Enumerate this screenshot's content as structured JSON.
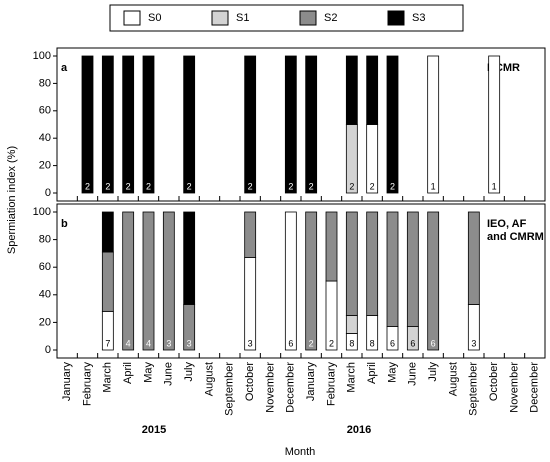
{
  "legend": [
    {
      "name": "S0",
      "color": "#ffffff"
    },
    {
      "name": "S1",
      "color": "#d3d3d3"
    },
    {
      "name": "S2",
      "color": "#8c8c8c"
    },
    {
      "name": "S3",
      "color": "#000000"
    }
  ],
  "y_label": "Spermiation index (%)",
  "x_label": "Month",
  "years": [
    "2015",
    "2016"
  ],
  "chart_data": [
    {
      "type": "stacked_bar",
      "panel": "a",
      "annotation": [
        "HCMR"
      ],
      "categories": [
        "January",
        "February",
        "March",
        "April",
        "May",
        "June",
        "July",
        "August",
        "September",
        "October",
        "November",
        "December",
        "January",
        "February",
        "March",
        "April",
        "May",
        "June",
        "July",
        "August",
        "September",
        "October",
        "November",
        "December"
      ],
      "series": [
        {
          "values": [
            null,
            0,
            0,
            0,
            0,
            null,
            0,
            null,
            null,
            0,
            null,
            0,
            0,
            null,
            0,
            50,
            0,
            null,
            100,
            null,
            null,
            100,
            null,
            null
          ]
        },
        {
          "values": [
            null,
            0,
            0,
            0,
            0,
            null,
            0,
            null,
            null,
            0,
            null,
            0,
            0,
            null,
            50,
            0,
            0,
            null,
            0,
            null,
            null,
            0,
            null,
            null
          ]
        },
        {
          "values": [
            null,
            0,
            0,
            0,
            0,
            null,
            0,
            null,
            null,
            0,
            null,
            0,
            0,
            null,
            0,
            0,
            0,
            null,
            0,
            null,
            null,
            0,
            null,
            null
          ]
        },
        {
          "values": [
            null,
            100,
            100,
            100,
            100,
            null,
            100,
            null,
            null,
            100,
            null,
            100,
            100,
            null,
            50,
            50,
            100,
            null,
            0,
            null,
            null,
            0,
            null,
            null
          ]
        }
      ],
      "n": [
        null,
        2,
        2,
        2,
        2,
        null,
        2,
        null,
        null,
        2,
        null,
        2,
        2,
        null,
        2,
        2,
        2,
        null,
        1,
        null,
        null,
        1,
        null,
        null
      ],
      "ylim": [
        0,
        100
      ],
      "yticks": [
        0,
        20,
        40,
        60,
        80,
        100
      ]
    },
    {
      "type": "stacked_bar",
      "panel": "b",
      "annotation": [
        "IEO, AF",
        "and CMRM"
      ],
      "categories": [
        "January",
        "February",
        "March",
        "April",
        "May",
        "June",
        "July",
        "August",
        "September",
        "October",
        "November",
        "December",
        "January",
        "February",
        "March",
        "April",
        "May",
        "June",
        "July",
        "August",
        "September",
        "October",
        "November",
        "December"
      ],
      "series": [
        {
          "values": [
            null,
            null,
            28,
            0,
            0,
            0,
            0,
            null,
            null,
            67,
            null,
            100,
            0,
            50,
            12,
            25,
            17,
            0,
            0,
            null,
            33,
            null,
            null,
            null
          ]
        },
        {
          "values": [
            null,
            null,
            0,
            0,
            0,
            0,
            0,
            null,
            null,
            0,
            null,
            0,
            0,
            0,
            13,
            0,
            0,
            17,
            0,
            null,
            0,
            null,
            null,
            null
          ]
        },
        {
          "values": [
            null,
            null,
            43,
            100,
            100,
            100,
            33,
            null,
            null,
            33,
            null,
            0,
            100,
            50,
            75,
            75,
            83,
            83,
            100,
            null,
            67,
            null,
            null,
            null
          ]
        },
        {
          "values": [
            null,
            null,
            29,
            0,
            0,
            0,
            67,
            null,
            null,
            0,
            null,
            0,
            0,
            0,
            0,
            0,
            0,
            0,
            0,
            null,
            0,
            null,
            null,
            null
          ]
        }
      ],
      "n": [
        null,
        null,
        7,
        4,
        4,
        3,
        3,
        null,
        null,
        3,
        null,
        6,
        2,
        2,
        8,
        8,
        6,
        6,
        6,
        null,
        3,
        null,
        null,
        null
      ],
      "ylim": [
        0,
        100
      ],
      "yticks": [
        0,
        20,
        40,
        60,
        80,
        100
      ]
    }
  ]
}
